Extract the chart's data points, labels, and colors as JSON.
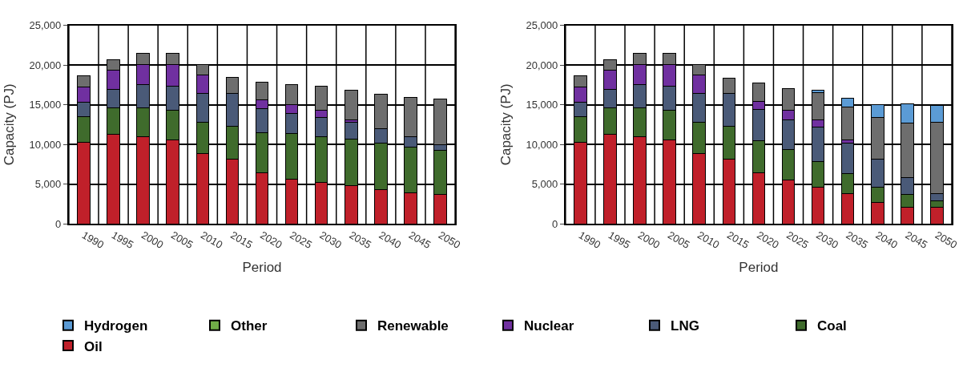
{
  "chart_data": [
    {
      "type": "bar",
      "stacked": true,
      "xlabel": "Period",
      "ylabel": "Capacity (PJ)",
      "categories": [
        "1990",
        "1995",
        "2000",
        "2005",
        "2010",
        "2015",
        "2020",
        "2025",
        "2030",
        "2035",
        "2040",
        "2045",
        "2050"
      ],
      "ylim": [
        0,
        25000
      ],
      "yticks": [
        {
          "value": 0,
          "label": "0"
        },
        {
          "value": 5000,
          "label": "5,000"
        },
        {
          "value": 10000,
          "label": "10,000"
        },
        {
          "value": 15000,
          "label": "15,000"
        },
        {
          "value": 20000,
          "label": "20,000"
        },
        {
          "value": 25000,
          "label": "25,000"
        }
      ],
      "grid": true,
      "legend": "bottom",
      "series": [
        {
          "name": "Oil",
          "color": "#c0202a",
          "values": [
            10300,
            11300,
            11000,
            10600,
            8800,
            8100,
            6400,
            5600,
            5200,
            4800,
            4300,
            3900,
            3700
          ]
        },
        {
          "name": "Coal",
          "color": "#3f6b2c",
          "values": [
            3200,
            3300,
            3600,
            3700,
            4000,
            4200,
            5100,
            5800,
            5800,
            5900,
            5900,
            5800,
            5600
          ]
        },
        {
          "name": "LNG",
          "color": "#4a5a78",
          "values": [
            1800,
            2300,
            2900,
            3000,
            3600,
            4100,
            3000,
            2500,
            2400,
            2100,
            1800,
            1300,
            700
          ]
        },
        {
          "name": "Nuclear",
          "color": "#7030a0",
          "values": [
            1900,
            2500,
            2600,
            2800,
            2300,
            null,
            1100,
            1100,
            900,
            300,
            null,
            null,
            null
          ]
        },
        {
          "name": "Renewable",
          "color": "#6e6e6e",
          "values": [
            1400,
            1300,
            1400,
            1400,
            1400,
            2000,
            2200,
            2500,
            3000,
            3700,
            4300,
            4900,
            5700
          ]
        },
        {
          "name": "Other",
          "color": "#70ad47",
          "values": [
            null,
            null,
            null,
            null,
            null,
            null,
            null,
            null,
            null,
            null,
            null,
            null,
            null
          ]
        }
      ]
    },
    {
      "type": "bar",
      "stacked": true,
      "xlabel": "Period",
      "ylabel": "Capacity (PJ)",
      "categories": [
        "1990",
        "1995",
        "2000",
        "2005",
        "2010",
        "2015",
        "2020",
        "2025",
        "2030",
        "2035",
        "2040",
        "2045",
        "2050"
      ],
      "ylim": [
        0,
        25000
      ],
      "yticks": [
        {
          "value": 0,
          "label": "0"
        },
        {
          "value": 5000,
          "label": "5,000"
        },
        {
          "value": 10000,
          "label": "10,000"
        },
        {
          "value": 15000,
          "label": "15,000"
        },
        {
          "value": 20000,
          "label": "20,000"
        },
        {
          "value": 25000,
          "label": "25,000"
        }
      ],
      "grid": true,
      "legend": "bottom",
      "series": [
        {
          "name": "Oil",
          "color": "#c0202a",
          "values": [
            10300,
            11300,
            11000,
            10600,
            8800,
            8100,
            6400,
            5500,
            4600,
            3800,
            2700,
            2100,
            2100
          ]
        },
        {
          "name": "Coal",
          "color": "#3f6b2c",
          "values": [
            3200,
            3300,
            3600,
            3700,
            4000,
            4200,
            4100,
            3900,
            3200,
            2500,
            1900,
            1600,
            800
          ]
        },
        {
          "name": "LNG",
          "color": "#4a5a78",
          "values": [
            1800,
            2300,
            2900,
            3000,
            3600,
            4100,
            3900,
            3700,
            4400,
            3900,
            3500,
            2100,
            900
          ]
        },
        {
          "name": "Nuclear",
          "color": "#7030a0",
          "values": [
            1900,
            2500,
            2600,
            2800,
            2300,
            null,
            1000,
            1200,
            900,
            400,
            null,
            null,
            null
          ]
        },
        {
          "name": "Renewable",
          "color": "#6e6e6e",
          "values": [
            1400,
            1300,
            1400,
            1400,
            1400,
            1900,
            2300,
            2700,
            3400,
            4100,
            5300,
            6900,
            9000
          ]
        },
        {
          "name": "Hydrogen",
          "color": "#5b9bd5",
          "values": [
            null,
            null,
            null,
            null,
            null,
            null,
            null,
            null,
            300,
            1100,
            1600,
            2400,
            2100
          ]
        }
      ]
    }
  ]
}
